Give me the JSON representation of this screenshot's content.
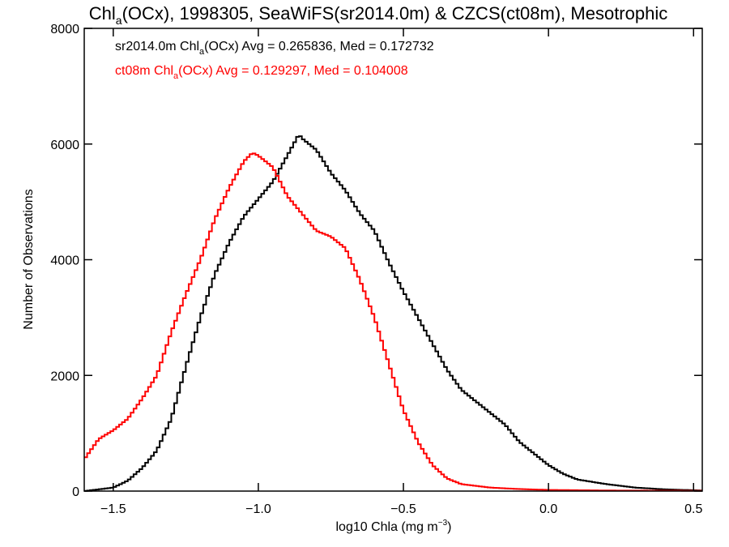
{
  "chart_data": {
    "type": "line",
    "title": {
      "prefix": "Chl",
      "sub": "a",
      "suffix": "(OCx), 1998305, SeaWiFS(sr2014.0m) & CZCS(ct08m), Mesotrophic"
    },
    "xlabel": {
      "main": "log10 Chla (mg m",
      "sup": "−3",
      "end": ")"
    },
    "ylabel": "Number of Observations",
    "xlim": [
      -1.6,
      0.53
    ],
    "ylim": [
      0,
      8000
    ],
    "xticks": [
      -1.5,
      -1.0,
      -0.5,
      0.0,
      0.5
    ],
    "xtick_labels": [
      "−1.5",
      "−1.0",
      "−0.5",
      "0.0",
      "0.5"
    ],
    "yticks": [
      0,
      2000,
      4000,
      6000,
      8000
    ],
    "ytick_labels": [
      "0",
      "2000",
      "4000",
      "6000",
      "8000"
    ],
    "line_style": "steps",
    "series": [
      {
        "name": "sr2014.0m",
        "color": "#000000",
        "legend": {
          "prefix": "sr2014.0m Chl",
          "sub": "a",
          "suffix": "(OCx) Avg = 0.265836, Med = 0.172732"
        },
        "points": [
          [
            -1.6,
            0
          ],
          [
            -1.5,
            60
          ],
          [
            -1.45,
            180
          ],
          [
            -1.4,
            400
          ],
          [
            -1.35,
            700
          ],
          [
            -1.3,
            1250
          ],
          [
            -1.25,
            2150
          ],
          [
            -1.2,
            3000
          ],
          [
            -1.15,
            3750
          ],
          [
            -1.1,
            4300
          ],
          [
            -1.05,
            4750
          ],
          [
            -1.0,
            5050
          ],
          [
            -0.95,
            5350
          ],
          [
            -0.9,
            5800
          ],
          [
            -0.86,
            6170
          ],
          [
            -0.85,
            6100
          ],
          [
            -0.8,
            5900
          ],
          [
            -0.75,
            5500
          ],
          [
            -0.7,
            5200
          ],
          [
            -0.65,
            4800
          ],
          [
            -0.6,
            4500
          ],
          [
            -0.55,
            3950
          ],
          [
            -0.5,
            3450
          ],
          [
            -0.45,
            3000
          ],
          [
            -0.4,
            2550
          ],
          [
            -0.35,
            2100
          ],
          [
            -0.3,
            1750
          ],
          [
            -0.25,
            1550
          ],
          [
            -0.2,
            1350
          ],
          [
            -0.15,
            1150
          ],
          [
            -0.1,
            850
          ],
          [
            -0.05,
            650
          ],
          [
            0.0,
            450
          ],
          [
            0.05,
            300
          ],
          [
            0.1,
            200
          ],
          [
            0.2,
            120
          ],
          [
            0.3,
            60
          ],
          [
            0.4,
            30
          ],
          [
            0.53,
            10
          ]
        ]
      },
      {
        "name": "ct08m",
        "color": "#ff0000",
        "legend": {
          "prefix": "ct08m Chl",
          "sub": "a",
          "suffix": "(OCx) Avg = 0.129297, Med = 0.104008"
        },
        "points": [
          [
            -1.6,
            550
          ],
          [
            -1.55,
            900
          ],
          [
            -1.5,
            1050
          ],
          [
            -1.45,
            1250
          ],
          [
            -1.4,
            1600
          ],
          [
            -1.35,
            2000
          ],
          [
            -1.3,
            2750
          ],
          [
            -1.25,
            3400
          ],
          [
            -1.2,
            4000
          ],
          [
            -1.15,
            4700
          ],
          [
            -1.1,
            5250
          ],
          [
            -1.05,
            5700
          ],
          [
            -1.02,
            5850
          ],
          [
            -1.0,
            5800
          ],
          [
            -0.95,
            5600
          ],
          [
            -0.9,
            5100
          ],
          [
            -0.85,
            4800
          ],
          [
            -0.8,
            4500
          ],
          [
            -0.75,
            4400
          ],
          [
            -0.7,
            4200
          ],
          [
            -0.65,
            3650
          ],
          [
            -0.6,
            3000
          ],
          [
            -0.55,
            2200
          ],
          [
            -0.5,
            1400
          ],
          [
            -0.45,
            850
          ],
          [
            -0.4,
            450
          ],
          [
            -0.35,
            220
          ],
          [
            -0.3,
            120
          ],
          [
            -0.2,
            60
          ],
          [
            -0.1,
            35
          ],
          [
            0.0,
            20
          ],
          [
            0.2,
            10
          ],
          [
            0.53,
            5
          ]
        ]
      }
    ]
  }
}
